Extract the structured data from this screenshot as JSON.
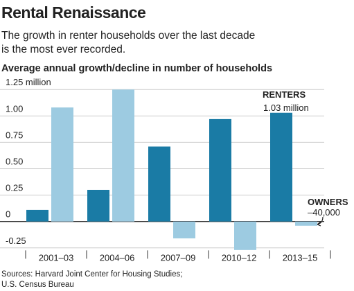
{
  "chart_data": {
    "type": "bar",
    "title": "Rental Renaissance",
    "subtitle": [
      "The growth in renter households over the last decade",
      "is the most ever recorded."
    ],
    "chart_title": "Average annual growth/decline in number of households",
    "categories": [
      "2001–03",
      "2004–06",
      "2007–09",
      "2010–12",
      "2013–15"
    ],
    "series": [
      {
        "name": "RENTERS",
        "color": "#1a7ba5",
        "values": [
          0.11,
          0.3,
          0.71,
          0.97,
          1.03
        ],
        "value_labels": [
          null,
          null,
          null,
          null,
          "1.03 million"
        ]
      },
      {
        "name": "OWNERS",
        "color": "#9dcbe1",
        "values": [
          1.08,
          1.25,
          -0.16,
          -0.27,
          -0.04
        ],
        "value_labels": [
          null,
          null,
          null,
          null,
          "–40,000"
        ]
      }
    ],
    "ylim": [
      -0.3,
      1.3
    ],
    "yticks": [
      {
        "value": 1.25,
        "label": "1.25 million"
      },
      {
        "value": 1,
        "label": "1.00"
      },
      0.75,
      {
        "value": 0.5,
        "label": "0.50"
      },
      0.25,
      0,
      -0.25
    ],
    "grid": true,
    "source": [
      "Sources: Harvard Joint Center for Housing Studies;",
      "U.S. Census Bureau"
    ]
  }
}
